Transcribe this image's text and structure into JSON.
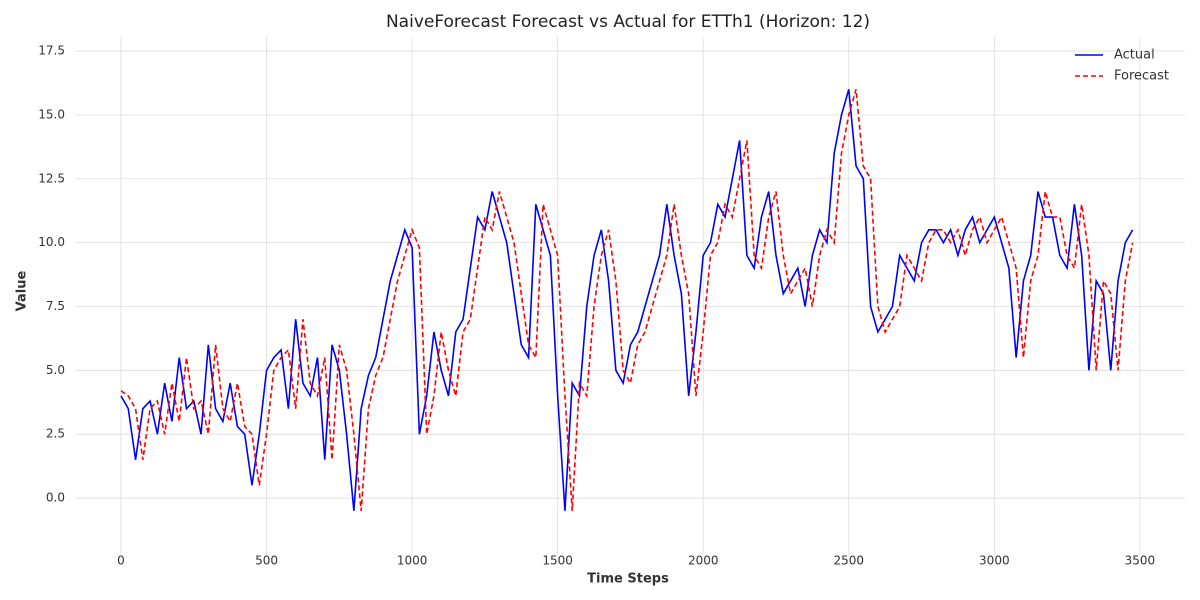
{
  "chart_data": {
    "type": "line",
    "title": "NaiveForecast Forecast vs Actual for ETTh1 (Horizon: 12)",
    "x_label": "Time Steps",
    "y_label": "Value",
    "x": [
      0,
      25,
      50,
      75,
      100,
      125,
      150,
      175,
      200,
      225,
      250,
      275,
      300,
      325,
      350,
      375,
      400,
      425,
      450,
      475,
      500,
      525,
      550,
      575,
      600,
      625,
      650,
      675,
      700,
      725,
      750,
      775,
      800,
      825,
      850,
      875,
      900,
      925,
      950,
      975,
      1000,
      1025,
      1050,
      1075,
      1100,
      1125,
      1150,
      1175,
      1200,
      1225,
      1250,
      1275,
      1300,
      1325,
      1350,
      1375,
      1400,
      1425,
      1450,
      1475,
      1500,
      1525,
      1550,
      1575,
      1600,
      1625,
      1650,
      1675,
      1700,
      1725,
      1750,
      1775,
      1800,
      1825,
      1850,
      1875,
      1900,
      1925,
      1950,
      1975,
      2000,
      2025,
      2050,
      2075,
      2100,
      2125,
      2150,
      2175,
      2200,
      2225,
      2250,
      2275,
      2300,
      2325,
      2350,
      2375,
      2400,
      2425,
      2450,
      2475,
      2500,
      2525,
      2550,
      2575,
      2600,
      2625,
      2650,
      2675,
      2700,
      2725,
      2750,
      2775,
      2800,
      2825,
      2850,
      2875,
      2900,
      2925,
      2950,
      2975,
      3000,
      3025,
      3050,
      3075,
      3100,
      3125,
      3150,
      3175,
      3200,
      3225,
      3250,
      3275,
      3300,
      3325,
      3350,
      3375,
      3400,
      3425,
      3450,
      3475
    ],
    "series": [
      {
        "name": "Actual",
        "color": "#0000ff",
        "dash": false,
        "values": [
          4.0,
          3.5,
          1.5,
          3.5,
          3.8,
          2.5,
          4.5,
          3.0,
          5.5,
          3.5,
          3.8,
          2.5,
          6.0,
          3.5,
          3.0,
          4.5,
          2.8,
          2.5,
          0.5,
          2.5,
          5.0,
          5.5,
          5.8,
          3.5,
          7.0,
          4.5,
          4.0,
          5.5,
          1.5,
          6.0,
          5.0,
          2.5,
          -0.5,
          3.5,
          4.8,
          5.5,
          7.0,
          8.5,
          9.5,
          10.5,
          9.8,
          2.5,
          4.0,
          6.5,
          5.0,
          4.0,
          6.5,
          7.0,
          9.0,
          11.0,
          10.5,
          12.0,
          11.0,
          10.0,
          8.0,
          6.0,
          5.5,
          11.5,
          10.5,
          9.5,
          4.0,
          -0.5,
          4.5,
          4.0,
          7.5,
          9.5,
          10.5,
          8.5,
          5.0,
          4.5,
          6.0,
          6.5,
          7.5,
          8.5,
          9.5,
          11.5,
          9.5,
          8.0,
          4.0,
          6.5,
          9.5,
          10.0,
          11.5,
          11.0,
          12.5,
          14.0,
          9.5,
          9.0,
          11.0,
          12.0,
          9.5,
          8.0,
          8.5,
          9.0,
          7.5,
          9.5,
          10.5,
          10.0,
          13.5,
          15.0,
          16.0,
          13.0,
          12.5,
          7.5,
          6.5,
          7.0,
          7.5,
          9.5,
          9.0,
          8.5,
          10.0,
          10.5,
          10.5,
          10.0,
          10.5,
          9.5,
          10.5,
          11.0,
          10.0,
          10.5,
          11.0,
          10.0,
          9.0,
          5.5,
          8.5,
          9.5,
          12.0,
          11.0,
          11.0,
          9.5,
          9.0,
          11.5,
          9.5,
          5.0,
          8.5,
          8.0,
          5.0,
          8.5,
          10.0,
          10.5
        ]
      },
      {
        "name": "Forecast",
        "color": "#ff0000",
        "dash": true,
        "values": [
          4.2,
          4.0,
          3.5,
          1.5,
          3.5,
          3.8,
          2.5,
          4.5,
          3.0,
          5.5,
          3.5,
          3.8,
          2.5,
          6.0,
          3.5,
          3.0,
          4.5,
          2.8,
          2.5,
          0.5,
          2.5,
          5.0,
          5.5,
          5.8,
          3.5,
          7.0,
          4.5,
          4.0,
          5.5,
          1.5,
          6.0,
          5.0,
          2.5,
          -0.5,
          3.5,
          4.8,
          5.5,
          7.0,
          8.5,
          9.5,
          10.5,
          9.8,
          2.5,
          4.0,
          6.5,
          5.0,
          4.0,
          6.5,
          7.0,
          9.0,
          11.0,
          10.5,
          12.0,
          11.0,
          10.0,
          8.0,
          6.0,
          5.5,
          11.5,
          10.5,
          9.5,
          4.0,
          -0.5,
          4.5,
          4.0,
          7.5,
          9.5,
          10.5,
          8.5,
          5.0,
          4.5,
          6.0,
          6.5,
          7.5,
          8.5,
          9.5,
          11.5,
          9.5,
          8.0,
          4.0,
          6.5,
          9.5,
          10.0,
          11.5,
          11.0,
          12.5,
          14.0,
          9.5,
          9.0,
          11.0,
          12.0,
          9.5,
          8.0,
          8.5,
          9.0,
          7.5,
          9.5,
          10.5,
          10.0,
          13.5,
          15.0,
          16.0,
          13.0,
          12.5,
          7.5,
          6.5,
          7.0,
          7.5,
          9.5,
          9.0,
          8.5,
          10.0,
          10.5,
          10.5,
          10.0,
          10.5,
          9.5,
          10.5,
          11.0,
          10.0,
          10.5,
          11.0,
          10.0,
          9.0,
          5.5,
          8.5,
          9.5,
          12.0,
          11.0,
          11.0,
          9.5,
          9.0,
          11.5,
          9.5,
          5.0,
          8.5,
          8.0,
          5.0,
          8.5,
          10.0
        ]
      }
    ],
    "xlim": [
      -158,
      3655
    ],
    "ylim": [
      -2.23,
      18.05
    ],
    "xticks": [
      0,
      500,
      1000,
      1500,
      2000,
      2500,
      3000,
      3500
    ],
    "yticks": [
      {
        "value": 0,
        "label": "0.0"
      },
      2.5,
      {
        "value": 5,
        "label": "5.0"
      },
      7.5,
      {
        "value": 10,
        "label": "10.0"
      },
      12.5,
      {
        "value": 15,
        "label": "15.0"
      },
      17.5
    ],
    "grid": true,
    "legend": "upper right"
  }
}
